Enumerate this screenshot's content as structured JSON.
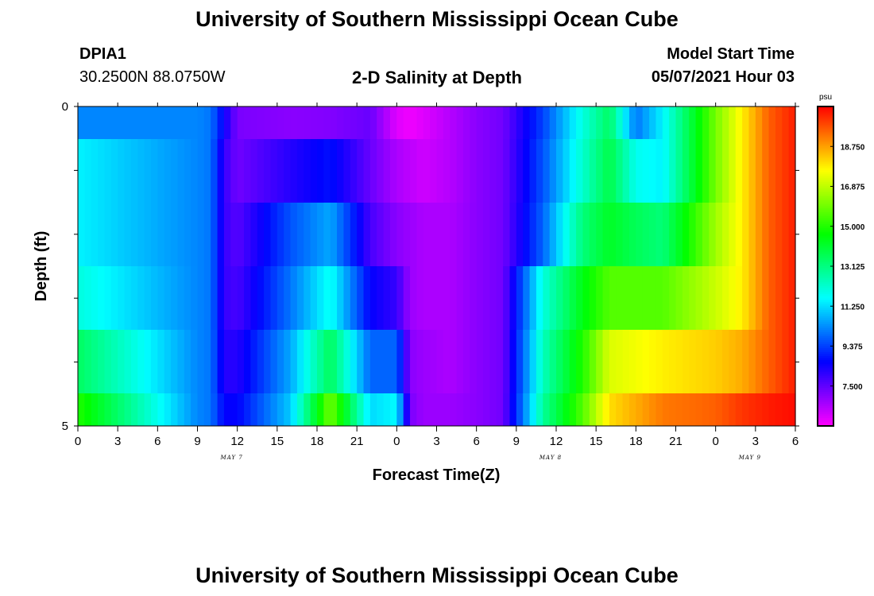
{
  "header": {
    "title": "University of Southern Mississippi Ocean Cube",
    "station_id": "DPIA1",
    "station_coords": "30.2500N  88.0750W",
    "chart_title": "2-D Salinity at Depth",
    "model_start_label": "Model Start Time",
    "model_start_value": "05/07/2021 Hour 03"
  },
  "footer": {
    "title": "University of Southern Mississippi Ocean Cube"
  },
  "chart_data": {
    "type": "heatmap",
    "title": "2-D Salinity at Depth",
    "xlabel": "Forecast Time(Z)",
    "ylabel": "Depth (ft)",
    "x_tick_labels": [
      "0",
      "3",
      "6",
      "9",
      "12",
      "15",
      "18",
      "21",
      "0",
      "3",
      "6",
      "9",
      "12",
      "15",
      "18",
      "21",
      "0",
      "3",
      "6"
    ],
    "date_labels": [
      "MAY 7",
      "MAY 8",
      "MAY 9"
    ],
    "y_tick_labels": [
      "0",
      "5"
    ],
    "ylim": [
      0,
      5
    ],
    "colorbar": {
      "unit": "psu",
      "ticks": [
        "18.750",
        "16.875",
        "15.000",
        "13.125",
        "11.250",
        "9.375",
        "7.500"
      ],
      "range": [
        5.625,
        20.625
      ]
    },
    "depth_rows": [
      "0-0.5",
      "0.5-1.5",
      "1.5-2.5",
      "2.5-3.5",
      "3.5-4.5",
      "4.5-5"
    ],
    "row_anchors_hours": [
      0,
      9,
      10,
      11,
      12,
      16,
      19,
      22,
      24,
      25,
      26,
      28,
      30,
      32,
      35,
      38,
      40,
      42,
      44,
      48,
      50,
      52,
      54
    ],
    "row_anchor_values": [
      [
        10.2,
        10.2,
        10.0,
        8.5,
        7.2,
        7.0,
        7.1,
        7.4,
        6.0,
        5.8,
        6.0,
        6.5,
        7.0,
        7.3,
        9.4,
        12.0,
        13.5,
        10.0,
        11.5,
        16.0,
        17.8,
        19.5,
        20.3
      ],
      [
        11.5,
        10.2,
        10.0,
        8.0,
        7.3,
        8.2,
        8.8,
        7.4,
        6.6,
        6.4,
        6.2,
        6.5,
        7.0,
        7.3,
        9.6,
        12.2,
        13.8,
        11.8,
        11.5,
        16.0,
        17.8,
        19.5,
        20.3
      ],
      [
        11.5,
        10.2,
        10.0,
        8.0,
        7.6,
        9.6,
        10.6,
        7.8,
        7.0,
        6.8,
        6.6,
        6.6,
        7.0,
        7.3,
        9.8,
        13.2,
        14.2,
        13.6,
        13.2,
        16.5,
        17.8,
        19.5,
        20.3
      ],
      [
        12.0,
        10.2,
        10.0,
        8.0,
        7.8,
        10.0,
        11.8,
        8.6,
        8.0,
        6.8,
        6.6,
        6.6,
        7.0,
        7.3,
        12.0,
        14.4,
        15.6,
        15.6,
        15.6,
        17.0,
        17.8,
        19.5,
        20.3
      ],
      [
        13.5,
        10.2,
        10.0,
        8.2,
        8.2,
        10.6,
        13.6,
        9.8,
        9.8,
        7.0,
        6.8,
        6.6,
        7.0,
        7.3,
        12.4,
        15.0,
        17.2,
        17.5,
        17.8,
        18.2,
        18.6,
        19.5,
        20.3
      ],
      [
        15.0,
        10.2,
        10.0,
        8.6,
        8.6,
        11.0,
        16.0,
        11.2,
        11.6,
        7.2,
        6.8,
        6.8,
        7.0,
        7.3,
        12.8,
        15.6,
        18.0,
        18.6,
        19.2,
        19.5,
        20.0,
        20.3,
        20.5
      ]
    ]
  }
}
